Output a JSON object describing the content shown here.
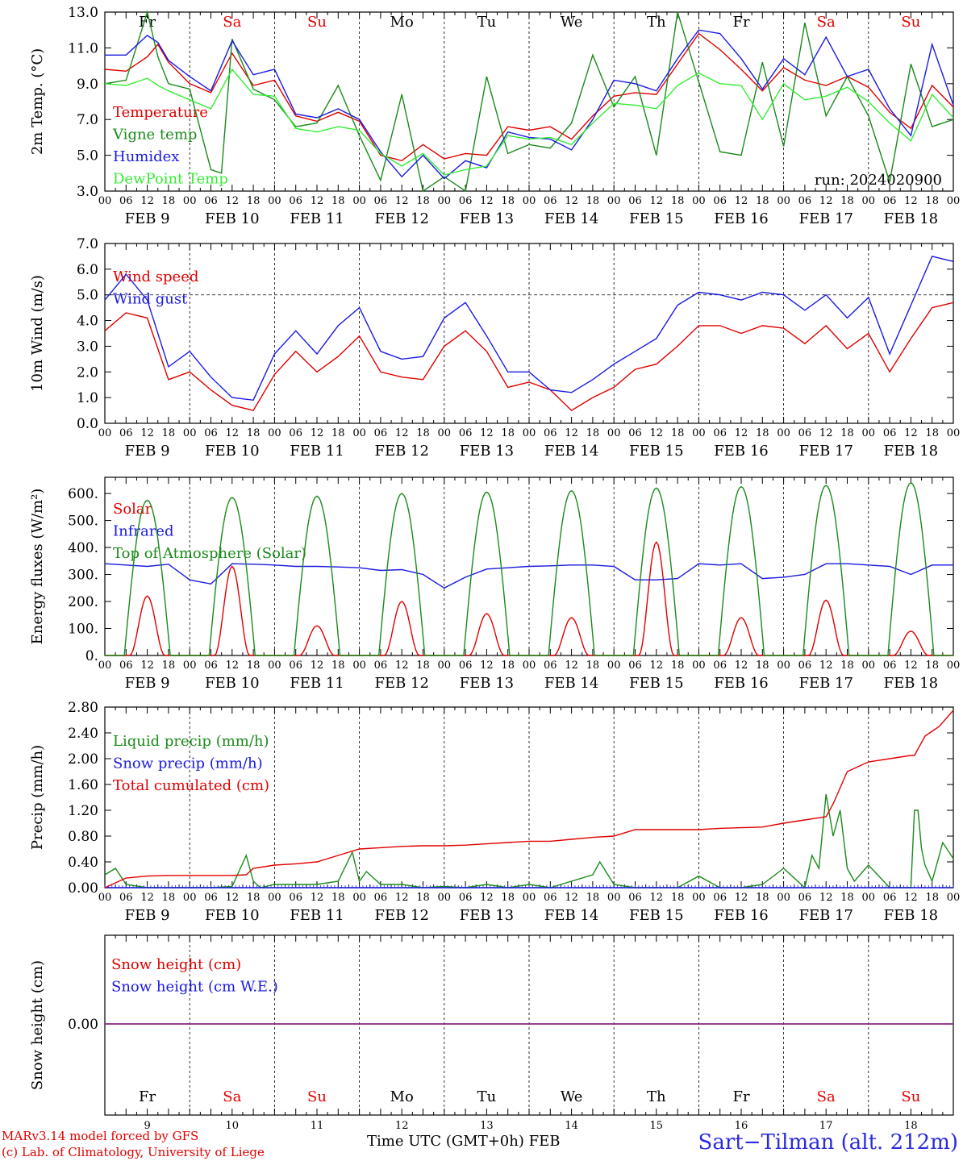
{
  "model_credit": "MARv3.14 model forced by GFS",
  "lab_credit": "(c) Lab. of Climatology, University of Liege",
  "station": "Sart−Tilman (alt. 212m)",
  "x_axis_title": "Time UTC (GMT+0h)",
  "month_label": "FEB",
  "run_label": "run: 2024020900",
  "hour_ticks": [
    "00",
    "06",
    "12",
    "18"
  ],
  "final_tick": "00",
  "days": [
    {
      "date": "FEB  9",
      "short": "9",
      "weekday": "Fr",
      "weekend": false
    },
    {
      "date": "FEB 10",
      "short": "10",
      "weekday": "Sa",
      "weekend": true
    },
    {
      "date": "FEB 11",
      "short": "11",
      "weekday": "Su",
      "weekend": true
    },
    {
      "date": "FEB 12",
      "short": "12",
      "weekday": "Mo",
      "weekend": false
    },
    {
      "date": "FEB 13",
      "short": "13",
      "weekday": "Tu",
      "weekend": false
    },
    {
      "date": "FEB 14",
      "short": "14",
      "weekday": "We",
      "weekend": false
    },
    {
      "date": "FEB 15",
      "short": "15",
      "weekday": "Th",
      "weekend": false
    },
    {
      "date": "FEB 16",
      "short": "16",
      "weekday": "Fr",
      "weekend": false
    },
    {
      "date": "FEB 17",
      "short": "17",
      "weekday": "Sa",
      "weekend": true
    },
    {
      "date": "FEB 18",
      "short": "18",
      "weekday": "Su",
      "weekend": true
    }
  ],
  "colors": {
    "weekday": "#000000",
    "weekend": "#e00000",
    "red": "#e00000",
    "green": "#1a8a1a",
    "blue": "#1a1ae0",
    "light_green": "#33ee33",
    "purple": "#7a2a9a"
  },
  "chart_data": [
    {
      "type": "line",
      "ylabel": "2m Temp. (°C)",
      "ylim": [
        3,
        13
      ],
      "yticks": [
        "3.0",
        "5.0",
        "7.0",
        "9.0",
        "11.0",
        "13.0"
      ],
      "x_unit": "hours since FEB 9 00 UTC",
      "series": [
        {
          "name": "Temperature",
          "color": "#e00000",
          "x": [
            0,
            6,
            12,
            15,
            18,
            24,
            30,
            36,
            42,
            48,
            54,
            60,
            66,
            72,
            78,
            84,
            90,
            96,
            102,
            108,
            114,
            120,
            126,
            132,
            138,
            144,
            150,
            156,
            162,
            168,
            174,
            180,
            186,
            192,
            198,
            204,
            210,
            216,
            222,
            228,
            234,
            240
          ],
          "y": [
            9.8,
            9.7,
            10.5,
            11.2,
            10.2,
            9.0,
            8.5,
            10.7,
            8.9,
            9.2,
            7.2,
            6.9,
            7.4,
            6.9,
            5.0,
            4.7,
            5.6,
            4.8,
            5.1,
            5.0,
            6.6,
            6.4,
            6.6,
            5.9,
            7.2,
            8.3,
            8.5,
            8.4,
            10.1,
            11.8,
            10.9,
            9.8,
            8.6,
            9.9,
            9.2,
            8.9,
            9.4,
            8.8,
            7.4,
            6.5,
            8.9,
            7.7
          ]
        },
        {
          "name": "Vigne temp",
          "color": "#1a8a1a",
          "x": [
            0,
            6,
            12,
            15,
            18,
            24,
            30,
            33,
            36,
            42,
            48,
            54,
            60,
            66,
            72,
            78,
            84,
            90,
            96,
            102,
            108,
            114,
            120,
            126,
            132,
            138,
            144,
            150,
            156,
            162,
            168,
            174,
            180,
            186,
            192,
            198,
            204,
            210,
            216,
            222,
            228,
            234,
            240
          ],
          "y": [
            9.0,
            9.2,
            13.0,
            10.5,
            9.0,
            8.7,
            4.2,
            4.0,
            11.5,
            8.7,
            8.1,
            6.6,
            6.8,
            8.9,
            6.1,
            3.6,
            8.4,
            3.0,
            3.8,
            3.0,
            9.4,
            5.1,
            5.6,
            5.4,
            6.8,
            10.6,
            7.7,
            9.4,
            5.0,
            13.0,
            9.1,
            5.2,
            5.0,
            10.2,
            5.5,
            12.4,
            7.2,
            9.4,
            7.2,
            3.5,
            10.1,
            6.6,
            7.0
          ]
        },
        {
          "name": "Humidex",
          "color": "#1a1ae0",
          "x": [
            0,
            6,
            12,
            15,
            18,
            24,
            30,
            36,
            42,
            48,
            54,
            60,
            66,
            72,
            78,
            84,
            90,
            96,
            102,
            108,
            114,
            120,
            126,
            132,
            138,
            144,
            150,
            156,
            162,
            168,
            174,
            180,
            186,
            192,
            198,
            204,
            210,
            216,
            222,
            228,
            234,
            240
          ],
          "y": [
            10.6,
            10.6,
            11.7,
            11.3,
            10.3,
            9.4,
            8.6,
            11.4,
            9.5,
            9.8,
            7.3,
            7.1,
            7.6,
            7.0,
            5.2,
            3.8,
            5.0,
            3.7,
            4.7,
            4.3,
            6.3,
            6.0,
            5.9,
            5.3,
            7.0,
            9.2,
            9.0,
            8.6,
            10.4,
            12.0,
            11.8,
            10.4,
            8.7,
            10.4,
            9.5,
            11.6,
            9.4,
            9.8,
            7.6,
            6.1,
            11.2,
            7.8
          ]
        },
        {
          "name": "DewPoint Temp",
          "color": "#33ee33",
          "x": [
            0,
            6,
            12,
            15,
            18,
            24,
            30,
            36,
            42,
            48,
            54,
            60,
            66,
            72,
            78,
            84,
            90,
            96,
            102,
            108,
            114,
            120,
            126,
            132,
            138,
            144,
            150,
            156,
            162,
            168,
            174,
            180,
            186,
            192,
            198,
            204,
            210,
            216,
            222,
            228,
            234,
            240
          ],
          "y": [
            9.0,
            8.9,
            9.3,
            8.9,
            8.6,
            8.1,
            7.6,
            9.8,
            8.4,
            8.3,
            6.5,
            6.3,
            6.6,
            6.4,
            5.1,
            4.4,
            5.1,
            3.9,
            4.2,
            4.4,
            6.1,
            5.9,
            6.0,
            5.6,
            6.8,
            7.9,
            7.8,
            7.6,
            8.9,
            9.6,
            9.0,
            8.9,
            7.0,
            9.0,
            8.1,
            8.3,
            8.8,
            8.0,
            6.8,
            5.8,
            8.4,
            7.1
          ]
        }
      ]
    },
    {
      "type": "line",
      "ylabel": "10m Wind (m/s)",
      "ylim": [
        0,
        7
      ],
      "yticks": [
        "0.0",
        "1.0",
        "2.0",
        "3.0",
        "4.0",
        "5.0",
        "6.0",
        "7.0"
      ],
      "reference_line": 5.0,
      "series": [
        {
          "name": "Wind speed",
          "color": "#e00000",
          "x": [
            0,
            6,
            12,
            18,
            24,
            30,
            36,
            42,
            48,
            54,
            60,
            66,
            72,
            78,
            84,
            90,
            96,
            102,
            108,
            114,
            120,
            126,
            132,
            138,
            144,
            150,
            156,
            162,
            168,
            174,
            180,
            186,
            192,
            198,
            204,
            210,
            216,
            222,
            228,
            234,
            240
          ],
          "y": [
            3.6,
            4.3,
            4.1,
            1.7,
            2.0,
            1.3,
            0.7,
            0.5,
            1.9,
            2.8,
            2.0,
            2.6,
            3.4,
            2.0,
            1.8,
            1.7,
            3.0,
            3.6,
            2.8,
            1.4,
            1.6,
            1.3,
            0.5,
            1.0,
            1.4,
            2.1,
            2.3,
            3.0,
            3.8,
            3.8,
            3.5,
            3.8,
            3.7,
            3.1,
            3.8,
            2.9,
            3.5,
            2.0,
            3.3,
            4.5,
            4.7
          ]
        },
        {
          "name": "Wind gust",
          "color": "#1a1ae0",
          "x": [
            0,
            6,
            12,
            18,
            24,
            30,
            36,
            42,
            48,
            54,
            60,
            66,
            72,
            78,
            84,
            90,
            96,
            102,
            108,
            114,
            120,
            126,
            132,
            138,
            144,
            150,
            156,
            162,
            168,
            174,
            180,
            186,
            192,
            198,
            204,
            210,
            216,
            222,
            228,
            234,
            240
          ],
          "y": [
            4.8,
            5.8,
            4.8,
            2.2,
            2.8,
            1.8,
            1.0,
            0.9,
            2.7,
            3.6,
            2.7,
            3.8,
            4.5,
            2.8,
            2.5,
            2.6,
            4.1,
            4.7,
            3.4,
            2.0,
            2.0,
            1.3,
            1.2,
            1.7,
            2.3,
            2.8,
            3.3,
            4.6,
            5.1,
            5.0,
            4.8,
            5.1,
            5.0,
            4.4,
            5.0,
            4.1,
            4.9,
            2.7,
            4.6,
            6.5,
            6.3
          ]
        }
      ]
    },
    {
      "type": "line",
      "ylabel": "Energy fluxes (W/m²)",
      "ylim": [
        0,
        660
      ],
      "yticks": [
        "0.",
        "100.",
        "200.",
        "300.",
        "400.",
        "500.",
        "600."
      ],
      "series": [
        {
          "name": "Solar",
          "color": "#e00000",
          "peaks": [
            220,
            330,
            110,
            200,
            155,
            140,
            420,
            140,
            205,
            90
          ]
        },
        {
          "name": "Infrared",
          "color": "#1a1ae0",
          "x": [
            0,
            6,
            12,
            18,
            24,
            30,
            36,
            42,
            48,
            54,
            60,
            66,
            72,
            78,
            84,
            90,
            96,
            102,
            108,
            114,
            120,
            126,
            132,
            138,
            144,
            150,
            156,
            162,
            168,
            174,
            180,
            186,
            192,
            198,
            204,
            210,
            216,
            222,
            228,
            234,
            240
          ],
          "y": [
            340,
            335,
            330,
            338,
            280,
            265,
            340,
            338,
            335,
            330,
            330,
            328,
            325,
            315,
            318,
            300,
            250,
            290,
            320,
            325,
            330,
            332,
            335,
            335,
            330,
            280,
            280,
            285,
            340,
            335,
            340,
            285,
            290,
            300,
            340,
            340,
            335,
            330,
            300,
            335,
            335
          ]
        },
        {
          "name": "Top of Atmosphere (Solar)",
          "color": "#1a8a1a",
          "peaks": [
            575,
            585,
            590,
            600,
            605,
            610,
            620,
            625,
            630,
            640
          ]
        }
      ]
    },
    {
      "type": "line",
      "ylabel": "Precip (mm/h)",
      "ylim": [
        0,
        2.8
      ],
      "yticks": [
        "0.00",
        "0.40",
        "0.80",
        "1.20",
        "1.60",
        "2.00",
        "2.40",
        "2.80"
      ],
      "series": [
        {
          "name": "Liquid precip (mm/h)",
          "color": "#1a8a1a",
          "x": [
            0,
            3,
            6,
            12,
            18,
            24,
            30,
            36,
            40,
            42,
            44,
            48,
            54,
            60,
            66,
            70,
            72,
            74,
            78,
            84,
            90,
            96,
            102,
            108,
            114,
            120,
            126,
            132,
            138,
            140,
            144,
            150,
            156,
            162,
            168,
            174,
            180,
            186,
            192,
            198,
            200,
            202,
            204,
            206,
            208,
            210,
            212,
            216,
            222,
            228,
            229,
            230,
            231,
            232,
            234,
            237,
            240
          ],
          "y": [
            0.2,
            0.3,
            0.05,
            0.0,
            0.0,
            0.0,
            0.0,
            0.02,
            0.5,
            0.1,
            0.0,
            0.05,
            0.05,
            0.05,
            0.1,
            0.55,
            0.1,
            0.25,
            0.05,
            0.05,
            0.0,
            0.02,
            0.0,
            0.05,
            0.0,
            0.05,
            0.0,
            0.1,
            0.2,
            0.4,
            0.05,
            0.0,
            0.0,
            0.0,
            0.18,
            0.0,
            0.0,
            0.05,
            0.3,
            0.0,
            0.5,
            0.3,
            1.45,
            0.8,
            1.2,
            0.3,
            0.1,
            0.35,
            0.0,
            0.0,
            1.2,
            1.2,
            0.6,
            0.35,
            0.1,
            0.7,
            0.45
          ]
        },
        {
          "name": "Snow precip (mm/h)",
          "color": "#1a1ae0",
          "x": [
            0,
            240
          ],
          "y": [
            0.0,
            0.0
          ]
        },
        {
          "name": "Total cumulated (cm)",
          "color": "#e00000",
          "x": [
            0,
            6,
            12,
            18,
            24,
            30,
            36,
            40,
            42,
            48,
            54,
            60,
            66,
            72,
            78,
            84,
            90,
            96,
            102,
            108,
            114,
            120,
            126,
            132,
            138,
            144,
            150,
            156,
            162,
            168,
            174,
            180,
            186,
            192,
            198,
            204,
            206,
            210,
            216,
            222,
            228,
            229,
            232,
            236,
            240
          ],
          "y": [
            0.0,
            0.15,
            0.18,
            0.19,
            0.19,
            0.19,
            0.19,
            0.2,
            0.3,
            0.35,
            0.37,
            0.4,
            0.5,
            0.6,
            0.62,
            0.64,
            0.65,
            0.65,
            0.66,
            0.68,
            0.7,
            0.72,
            0.72,
            0.75,
            0.78,
            0.8,
            0.9,
            0.9,
            0.9,
            0.9,
            0.92,
            0.93,
            0.94,
            1.0,
            1.05,
            1.1,
            1.3,
            1.8,
            1.95,
            2.0,
            2.05,
            2.05,
            2.35,
            2.5,
            2.75
          ]
        }
      ]
    },
    {
      "type": "line",
      "ylabel": "Snow height (cm)",
      "yticks": [
        "0.00"
      ],
      "series": [
        {
          "name": "Snow height (cm)",
          "color": "#e00000",
          "x": [
            0,
            240
          ],
          "y": [
            0,
            0
          ]
        },
        {
          "name": "Snow height (cm W.E.)",
          "color": "#1a1ae0",
          "x": [
            0,
            240
          ],
          "y": [
            0,
            0
          ]
        }
      ]
    }
  ]
}
